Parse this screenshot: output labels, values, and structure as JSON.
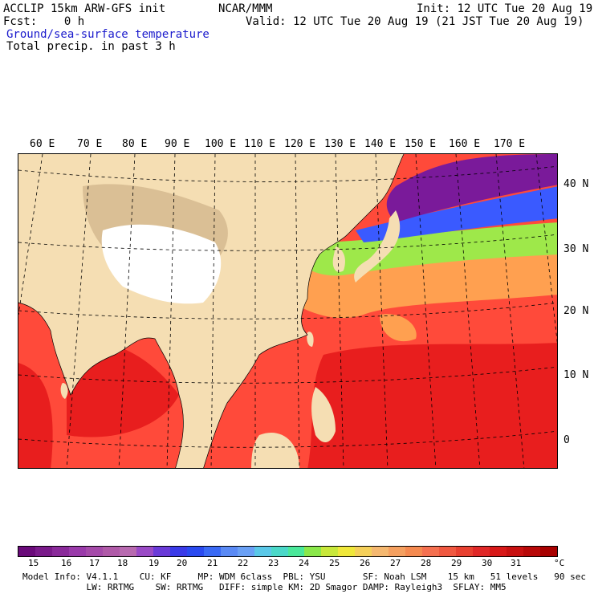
{
  "header": {
    "left_line1": "ACCLIP 15km ARW-GFS init",
    "center_line1": "NCAR/MMM",
    "right_line1": "Init: 12 UTC Tue 20 Aug 19",
    "left_line2": "Fcst:    0 h",
    "right_line2": "Valid: 12 UTC Tue 20 Aug 19 (21 JST Tue 20 Aug 19)",
    "line3": "Ground/sea-surface temperature",
    "line4": "Total precip. in past 3 h"
  },
  "map": {
    "longitude_labels": [
      "60 E",
      "70 E",
      "80 E",
      "90 E",
      "100 E",
      "110 E",
      "120 E",
      "130 E",
      "140 E",
      "150 E",
      "160 E",
      "170 E"
    ],
    "latitude_labels": [
      "40 N",
      "30 N",
      "20 N",
      "10 N",
      "0"
    ],
    "colors": {
      "land": "#f5deb3",
      "plateau": "#ffffff",
      "mountain": "#c8aa80",
      "warm_sea": "#ff4a3a",
      "hot_sea": "#e81e1e",
      "mild_sea": "#ffa050",
      "cool_sea": "#9ee84a",
      "cold_sea": "#3a5aff",
      "coldest_sea": "#7a1a9a"
    }
  },
  "colorbar": {
    "colors": [
      "#6a0a7a",
      "#7a1a8a",
      "#8a2a9a",
      "#9a3aaa",
      "#a54aa9",
      "#b05aa8",
      "#b86ab0",
      "#9a4ac6",
      "#6a3ad8",
      "#3a3ae8",
      "#2a4af0",
      "#3a6af5",
      "#5a8af5",
      "#6aa0f5",
      "#5ac8e8",
      "#4ad8c8",
      "#4ae89a",
      "#8ae84a",
      "#c8e83a",
      "#f0e83a",
      "#f5d05a",
      "#f5b870",
      "#f5a060",
      "#f58a50",
      "#f57050",
      "#f05840",
      "#e84030",
      "#e02828",
      "#d81818",
      "#c81010",
      "#b80808",
      "#a80000"
    ],
    "tick_labels": [
      "15",
      "16",
      "17",
      "18",
      "19",
      "20",
      "21",
      "22",
      "23",
      "24",
      "25",
      "26",
      "27",
      "28",
      "29",
      "30",
      "31"
    ],
    "unit": "°C"
  },
  "footer": {
    "line1": "Model Info: V4.1.1    CU: KF     MP: WDM 6class  PBL: YSU       SF: Noah LSM    15 km   51 levels   90 sec",
    "line2": "            LW: RRTMG    SW: RRTMG   DIFF: simple KM: 2D Smagor DAMP: Rayleigh3  SFLAY: MM5"
  }
}
